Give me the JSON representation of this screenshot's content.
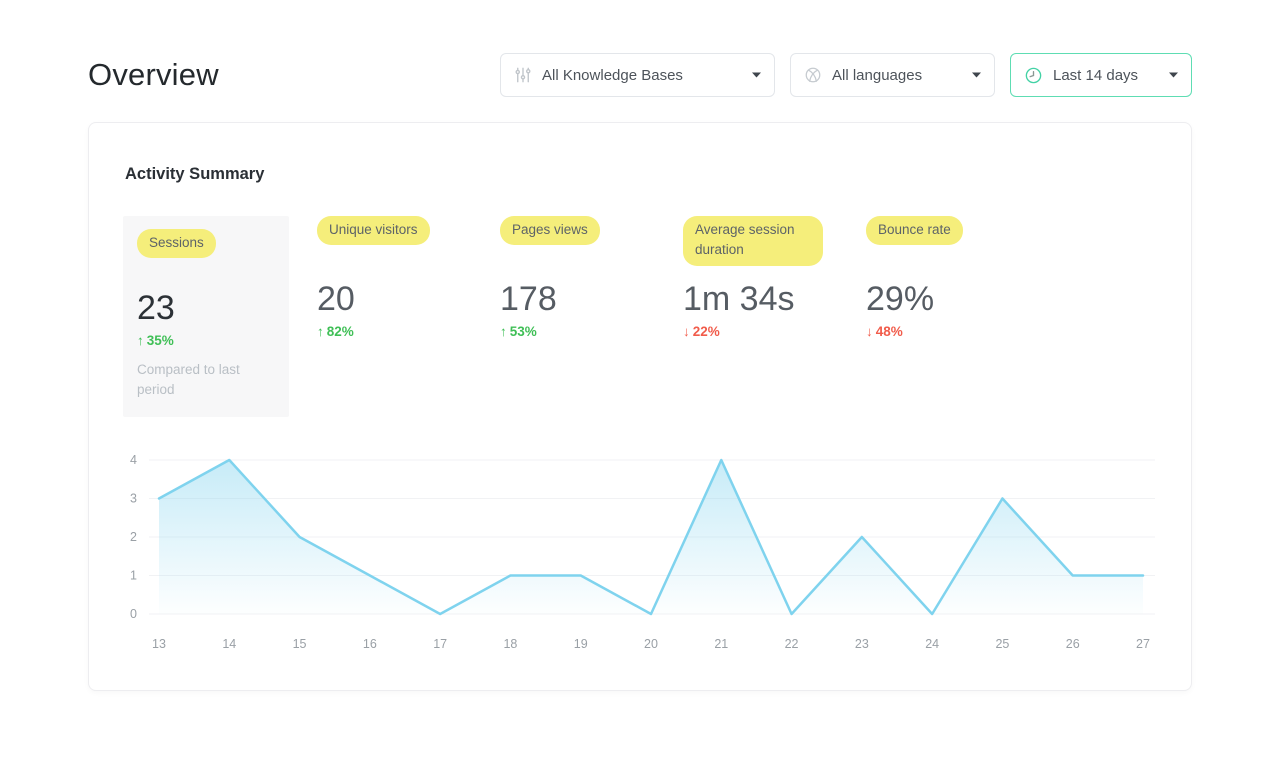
{
  "header": {
    "title": "Overview",
    "filters": [
      {
        "label": "All Knowledge Bases",
        "icon": "sliders-icon"
      },
      {
        "label": "All languages",
        "icon": "globe-icon"
      },
      {
        "label": "Last 14 days",
        "icon": "clock-icon"
      }
    ]
  },
  "card": {
    "heading": "Activity Summary",
    "metrics": [
      {
        "label": "Sessions",
        "value": "23",
        "change_icon": "↑",
        "change": "35%",
        "trend": "up",
        "selected": true,
        "note": "Compared to last period"
      },
      {
        "label": "Unique visitors",
        "value": "20",
        "change_icon": "↑",
        "change": "82%",
        "trend": "up"
      },
      {
        "label": "Pages views",
        "value": "178",
        "change_icon": "↑",
        "change": "53%",
        "trend": "up"
      },
      {
        "label": "Average session duration",
        "value": "1m 34s",
        "change_icon": "↓",
        "change": "22%",
        "trend": "down"
      },
      {
        "label": "Bounce rate",
        "value": "29%",
        "change_icon": "↓",
        "change": "48%",
        "trend": "down"
      }
    ]
  },
  "chart_data": {
    "type": "area",
    "title": "",
    "xlabel": "",
    "ylabel": "",
    "categories": [
      "13",
      "14",
      "15",
      "16",
      "17",
      "18",
      "19",
      "20",
      "21",
      "22",
      "23",
      "24",
      "25",
      "26",
      "27"
    ],
    "values": [
      3,
      4,
      2,
      1,
      0,
      1,
      1,
      0,
      4,
      0,
      2,
      0,
      3,
      1,
      1
    ],
    "ylim": [
      0,
      4
    ],
    "yticks": [
      0,
      1,
      2,
      3,
      4
    ],
    "grid": true,
    "legend": false,
    "line_color": "#7fd3ee",
    "fill_color": "#8fd8f0",
    "tick_color": "#9aa0a6",
    "grid_color": "#f1f2f4"
  },
  "colors": {
    "accent_green": "#5eddb3",
    "positive": "#3fbf56",
    "negative": "#f15c4b",
    "highlight_yellow": "#f5ee7b"
  }
}
